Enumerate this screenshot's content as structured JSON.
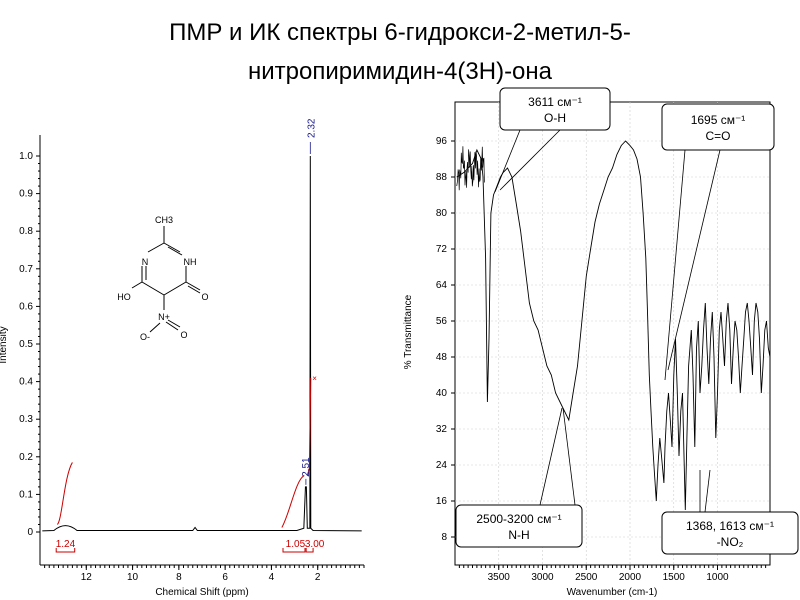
{
  "title": {
    "line1": "ПМР и ИК спектры 6-гидрокси-2-метил-5-",
    "line2": "нитропиримидин-4(3H)-она"
  },
  "structure": {
    "ch3": "CH3",
    "n": "N",
    "nh": "NH",
    "ho": "HO",
    "o": "O",
    "n_plus": "N+",
    "o_minus": "O-",
    "o2": "O"
  },
  "chart_data": [
    {
      "type": "line",
      "xlabel": "Chemical Shift (ppm)",
      "ylabel": "Intensity",
      "xlim": [
        14,
        0
      ],
      "ylim": [
        -0.02,
        1.05
      ],
      "x_ticks": [
        "12",
        "10",
        "8",
        "6",
        "4",
        "2"
      ],
      "y_ticks": [
        "0",
        "0.1",
        "0.2",
        "0.3",
        "0.4",
        "0.5",
        "0.6",
        "0.7",
        "0.8",
        "0.9",
        "1.0"
      ],
      "peaks": [
        {
          "x": 2.32,
          "y": 1.0,
          "label": "2.32"
        },
        {
          "x": 2.51,
          "y": 0.12,
          "label": "2.51"
        },
        {
          "x": 12.9,
          "y": 0.01
        }
      ],
      "integrals": [
        {
          "x_from": 13.3,
          "x_to": 12.5,
          "label": "1.24"
        },
        {
          "x_from": 3.5,
          "x_to": 2.55,
          "label": "1.05"
        },
        {
          "x_from": 2.5,
          "x_to": 2.2,
          "label": "3.00"
        }
      ],
      "integral_color": "#cc0000",
      "line_color": "#000000"
    },
    {
      "type": "line",
      "xlabel": "Wavenumber (cm-1)",
      "ylabel": "% Transmittance",
      "xlim": [
        4000,
        400
      ],
      "ylim": [
        4,
        100
      ],
      "x_ticks": [
        "3500",
        "3000",
        "2500",
        "2000",
        "1500",
        "1000"
      ],
      "y_ticks": [
        "8",
        "16",
        "24",
        "32",
        "40",
        "48",
        "56",
        "64",
        "72",
        "80",
        "88",
        "96"
      ],
      "series": [
        {
          "x": [
            3980,
            3900,
            3850,
            3800,
            3750,
            3700,
            3680,
            3650,
            3630,
            3611,
            3590,
            3560,
            3520,
            3480,
            3450,
            3400,
            3350,
            3300,
            3250,
            3200,
            3150,
            3100,
            3050,
            3000,
            2950,
            2900,
            2850,
            2800,
            2750,
            2700,
            2650,
            2600,
            2550,
            2500,
            2450,
            2400,
            2350,
            2300,
            2250,
            2200,
            2150,
            2100,
            2050,
            2000,
            1960,
            1920,
            1880,
            1850,
            1820,
            1800,
            1780,
            1760,
            1740,
            1720,
            1700,
            1695,
            1680,
            1660,
            1640,
            1613,
            1600,
            1580,
            1560,
            1540,
            1520,
            1500,
            1480,
            1460,
            1440,
            1420,
            1400,
            1368,
            1350,
            1330,
            1300,
            1280,
            1260,
            1240,
            1220,
            1200,
            1180,
            1160,
            1140,
            1120,
            1100,
            1080,
            1060,
            1040,
            1020,
            1000,
            980,
            960,
            940,
            920,
            900,
            880,
            860,
            840,
            820,
            800,
            780,
            760,
            740,
            720,
            700,
            680,
            660,
            640,
            620,
            600,
            580,
            560,
            540,
            520,
            500,
            480,
            460,
            440,
            420,
            400
          ],
          "y": [
            88,
            89,
            90,
            91,
            94,
            92,
            88,
            70,
            38,
            52,
            80,
            84,
            86,
            88,
            89,
            90,
            88,
            82,
            76,
            68,
            60,
            56,
            54,
            50,
            46,
            44,
            40,
            38,
            36,
            34,
            40,
            46,
            56,
            66,
            72,
            78,
            82,
            85,
            88,
            90,
            93,
            95,
            96,
            95,
            94,
            92,
            88,
            80,
            70,
            58,
            44,
            36,
            28,
            22,
            16,
            18,
            24,
            30,
            26,
            20,
            28,
            36,
            40,
            34,
            28,
            44,
            52,
            40,
            26,
            36,
            40,
            14,
            30,
            46,
            54,
            44,
            28,
            50,
            56,
            40,
            46,
            54,
            60,
            50,
            42,
            52,
            58,
            48,
            30,
            40,
            54,
            58,
            52,
            46,
            56,
            60,
            54,
            42,
            50,
            56,
            54,
            48,
            40,
            46,
            52,
            58,
            60,
            56,
            50,
            44,
            56,
            60,
            58,
            52,
            40,
            46,
            54,
            56,
            50,
            48
          ]
        }
      ],
      "callouts": [
        {
          "text": "3611 см⁻¹",
          "sub": "O-H"
        },
        {
          "text": "1695 см⁻¹",
          "sub": "C=O"
        },
        {
          "text": "2500-3200 см⁻¹",
          "sub": "N-H"
        },
        {
          "text": "1368, 1613 см⁻¹",
          "sub": "-NO₂"
        }
      ]
    }
  ]
}
